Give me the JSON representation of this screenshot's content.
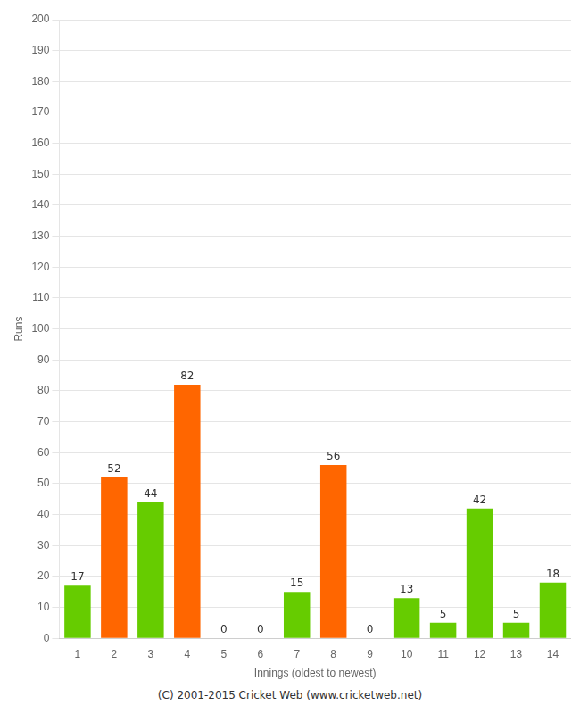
{
  "chart_data": {
    "type": "bar",
    "categories": [
      "1",
      "2",
      "3",
      "4",
      "5",
      "6",
      "7",
      "8",
      "9",
      "10",
      "11",
      "12",
      "13",
      "14"
    ],
    "values": [
      17,
      52,
      44,
      82,
      0,
      0,
      15,
      56,
      0,
      13,
      5,
      42,
      5,
      18
    ],
    "colors": [
      "#66cc00",
      "#ff6600",
      "#66cc00",
      "#ff6600",
      "#66cc00",
      "#66cc00",
      "#66cc00",
      "#ff6600",
      "#66cc00",
      "#66cc00",
      "#66cc00",
      "#66cc00",
      "#66cc00",
      "#66cc00"
    ],
    "x_label": "Innings (oldest to newest)",
    "y_label": "Runs",
    "ylim": [
      0,
      200
    ],
    "yticks": [
      0,
      10,
      20,
      30,
      40,
      50,
      60,
      70,
      80,
      90,
      100,
      110,
      120,
      130,
      140,
      150,
      160,
      170,
      180,
      190,
      200
    ],
    "grid": true,
    "data_labels": true,
    "annotations": [
      "(C) 2001-2015 Cricket Web (www.cricketweb.net)"
    ]
  }
}
